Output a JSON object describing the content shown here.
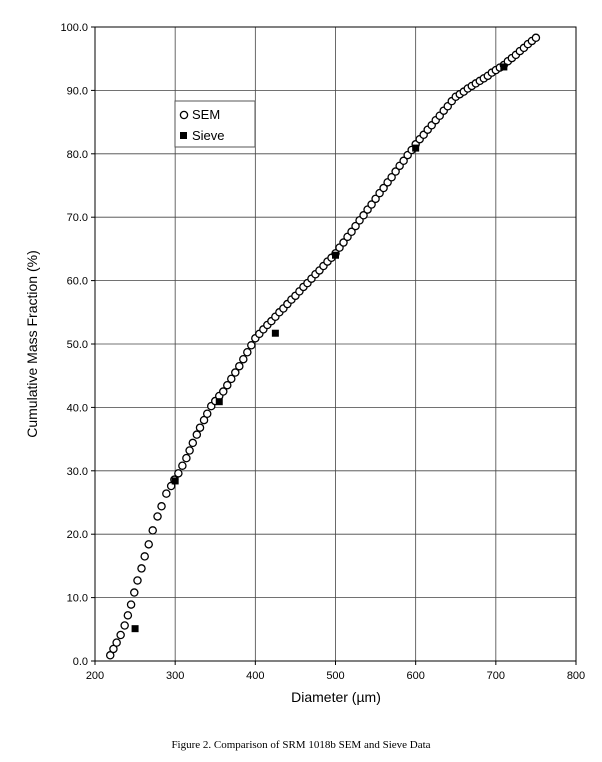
{
  "chart_data": {
    "type": "scatter",
    "xlabel": "Diameter (µm)",
    "ylabel": "Cumulative Mass Fraction (%)",
    "xlim": [
      200,
      800
    ],
    "ylim": [
      0,
      100
    ],
    "x_ticks": [
      "200",
      "300",
      "400",
      "500",
      "600",
      "700",
      "800"
    ],
    "y_ticks": [
      "0.0",
      "10.0",
      "20.0",
      "30.0",
      "40.0",
      "50.0",
      "60.0",
      "70.0",
      "80.0",
      "90.0",
      "100.0"
    ],
    "grid": true,
    "legend_position": "top-left",
    "caption": "Figure 2. Comparison of SRM 1018b SEM and Sieve Data",
    "series": [
      {
        "name": "SEM",
        "marker": "open-circle",
        "points": [
          [
            219,
            0.9
          ],
          [
            223,
            1.9
          ],
          [
            227,
            2.9
          ],
          [
            232,
            4.1
          ],
          [
            237,
            5.6
          ],
          [
            241,
            7.2
          ],
          [
            245,
            8.9
          ],
          [
            249,
            10.8
          ],
          [
            253,
            12.7
          ],
          [
            258,
            14.6
          ],
          [
            262,
            16.5
          ],
          [
            267,
            18.4
          ],
          [
            272,
            20.6
          ],
          [
            278,
            22.8
          ],
          [
            283,
            24.4
          ],
          [
            289,
            26.4
          ],
          [
            295,
            27.6
          ],
          [
            299,
            28.6
          ],
          [
            304,
            29.6
          ],
          [
            309,
            30.8
          ],
          [
            314,
            32.0
          ],
          [
            318,
            33.2
          ],
          [
            322,
            34.4
          ],
          [
            327,
            35.7
          ],
          [
            331,
            36.8
          ],
          [
            336,
            38.0
          ],
          [
            340,
            39.0
          ],
          [
            345,
            40.2
          ],
          [
            350,
            41.0
          ],
          [
            355,
            41.8
          ],
          [
            360,
            42.5
          ],
          [
            365,
            43.5
          ],
          [
            370,
            44.5
          ],
          [
            375,
            45.5
          ],
          [
            380,
            46.5
          ],
          [
            385,
            47.6
          ],
          [
            390,
            48.7
          ],
          [
            395,
            49.8
          ],
          [
            400,
            50.9
          ],
          [
            405,
            51.6
          ],
          [
            410,
            52.3
          ],
          [
            415,
            53.0
          ],
          [
            420,
            53.6
          ],
          [
            425,
            54.3
          ],
          [
            430,
            55.0
          ],
          [
            435,
            55.6
          ],
          [
            440,
            56.3
          ],
          [
            445,
            57.0
          ],
          [
            450,
            57.6
          ],
          [
            455,
            58.3
          ],
          [
            460,
            59.0
          ],
          [
            465,
            59.6
          ],
          [
            470,
            60.3
          ],
          [
            475,
            61.0
          ],
          [
            480,
            61.6
          ],
          [
            485,
            62.3
          ],
          [
            490,
            63.0
          ],
          [
            495,
            63.6
          ],
          [
            500,
            64.3
          ],
          [
            505,
            65.2
          ],
          [
            510,
            66.0
          ],
          [
            515,
            66.9
          ],
          [
            520,
            67.7
          ],
          [
            525,
            68.6
          ],
          [
            530,
            69.5
          ],
          [
            535,
            70.3
          ],
          [
            540,
            71.2
          ],
          [
            545,
            72.0
          ],
          [
            550,
            72.9
          ],
          [
            555,
            73.8
          ],
          [
            560,
            74.6
          ],
          [
            565,
            75.5
          ],
          [
            570,
            76.3
          ],
          [
            575,
            77.2
          ],
          [
            580,
            78.1
          ],
          [
            585,
            78.9
          ],
          [
            590,
            79.8
          ],
          [
            595,
            80.6
          ],
          [
            600,
            81.5
          ],
          [
            605,
            82.3
          ],
          [
            610,
            83.0
          ],
          [
            615,
            83.8
          ],
          [
            620,
            84.5
          ],
          [
            625,
            85.3
          ],
          [
            630,
            86.0
          ],
          [
            635,
            86.8
          ],
          [
            640,
            87.5
          ],
          [
            645,
            88.3
          ],
          [
            650,
            89.0
          ],
          [
            655,
            89.4
          ],
          [
            660,
            89.8
          ],
          [
            665,
            90.3
          ],
          [
            670,
            90.7
          ],
          [
            675,
            91.1
          ],
          [
            680,
            91.5
          ],
          [
            685,
            91.9
          ],
          [
            690,
            92.3
          ],
          [
            695,
            92.8
          ],
          [
            700,
            93.2
          ],
          [
            705,
            93.6
          ],
          [
            710,
            94.0
          ],
          [
            715,
            94.6
          ],
          [
            720,
            95.1
          ],
          [
            725,
            95.6
          ],
          [
            730,
            96.2
          ],
          [
            735,
            96.7
          ],
          [
            740,
            97.3
          ],
          [
            745,
            97.8
          ],
          [
            750,
            98.3
          ]
        ]
      },
      {
        "name": "Sieve",
        "marker": "filled-square",
        "points": [
          [
            250,
            5.1
          ],
          [
            300,
            28.4
          ],
          [
            355,
            40.9
          ],
          [
            425,
            51.7
          ],
          [
            500,
            64.0
          ],
          [
            600,
            80.9
          ],
          [
            710,
            93.7
          ]
        ]
      }
    ]
  }
}
